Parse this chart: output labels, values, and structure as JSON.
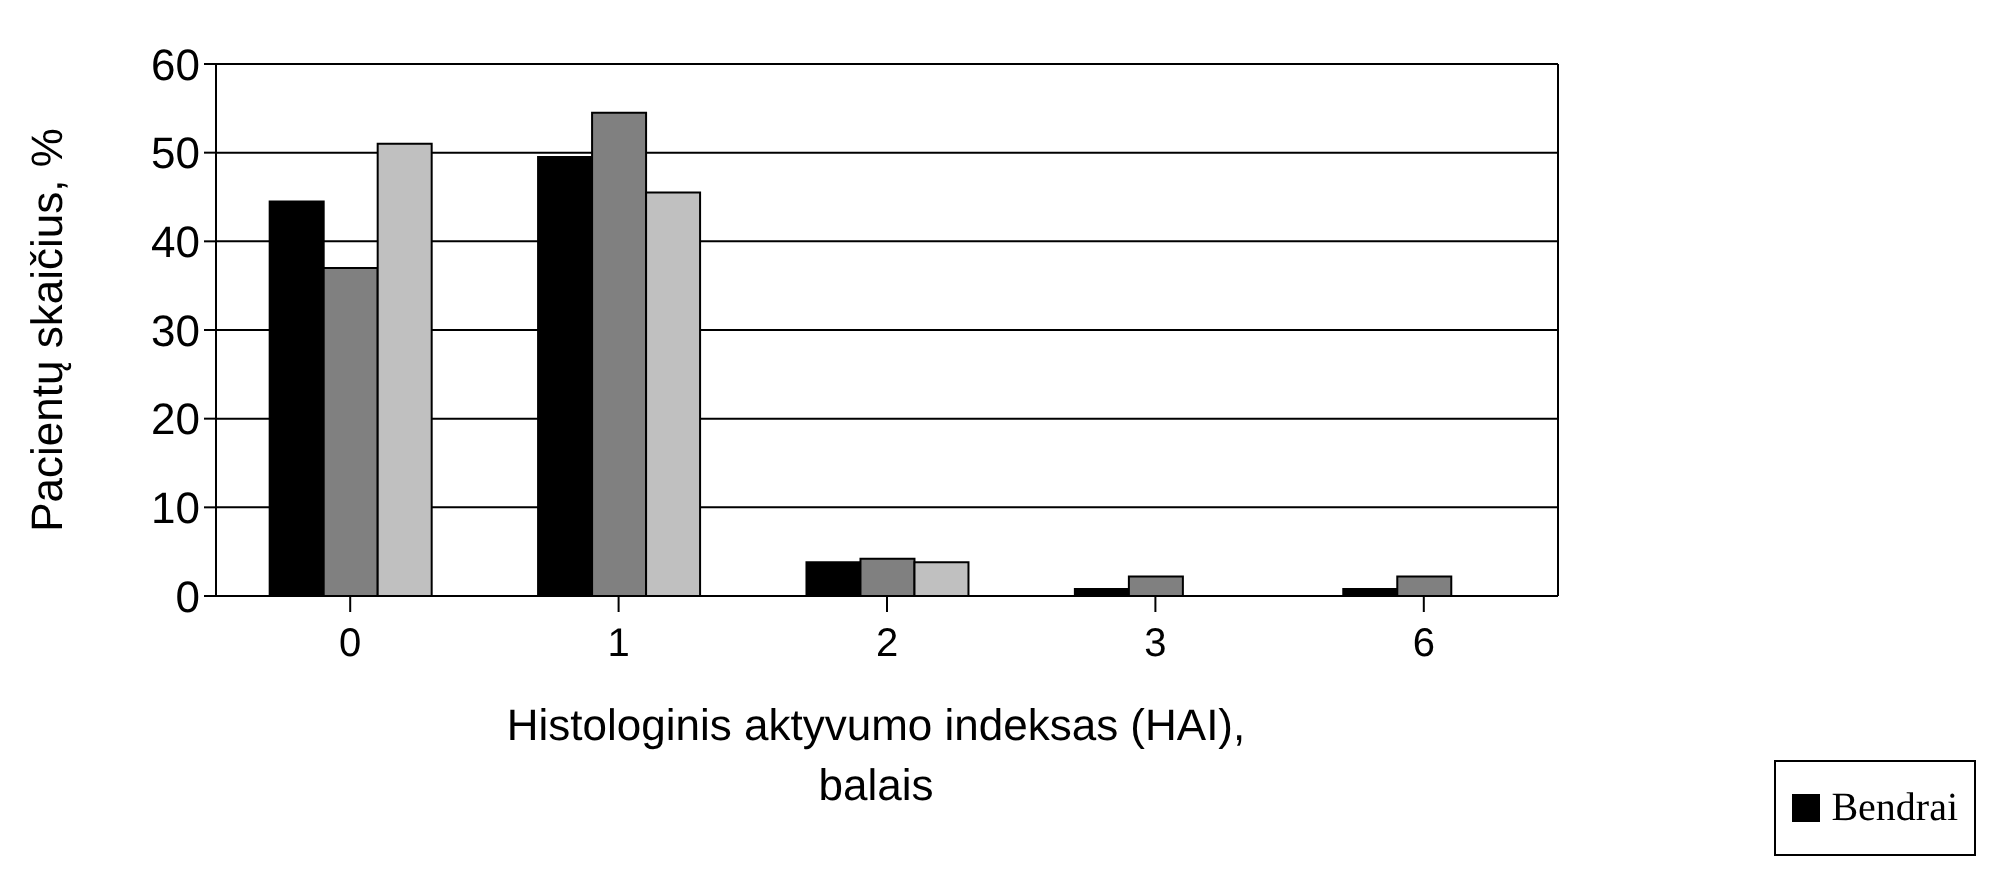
{
  "chart_data": {
    "type": "bar",
    "xlabel": "Histologinis aktyvumo indeksas (HAI), balais",
    "ylabel": "Pacientų skaičius, %",
    "categories": [
      "0",
      "1",
      "2",
      "3",
      "6"
    ],
    "series": [
      {
        "name": "Bendrai",
        "color": "#000000",
        "values": [
          44.5,
          49.5,
          3.8,
          0.8,
          0.8
        ]
      },
      {
        "color": "#808080",
        "values": [
          37,
          54.5,
          4.2,
          2.2,
          2.2
        ]
      },
      {
        "color": "#c0c0c0",
        "values": [
          51,
          45.5,
          3.8,
          0,
          0
        ]
      }
    ],
    "ylim": [
      0,
      60
    ],
    "yticks": [
      0,
      10,
      20,
      30,
      40,
      50,
      60
    ],
    "grid": "y",
    "legend": "bottom right"
  }
}
